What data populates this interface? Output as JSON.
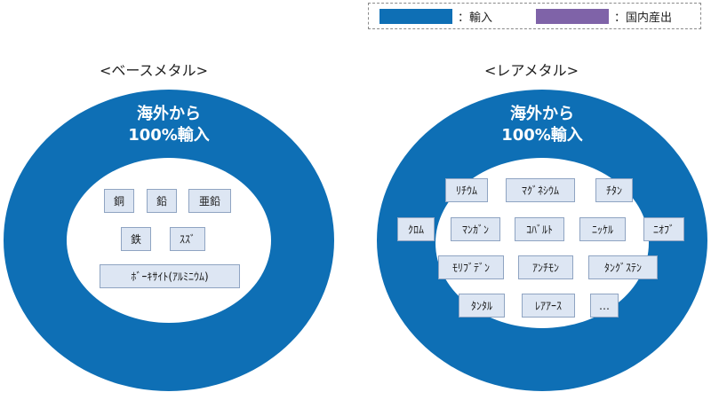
{
  "legend": {
    "import": {
      "label": "：輸入",
      "color": "#0e6fb5"
    },
    "domestic": {
      "label": "：国内産出",
      "color": "#7f63a8"
    }
  },
  "base": {
    "title": "<ベースメタル>",
    "ring_label_line1": "海外から",
    "ring_label_line2": "100%輸入",
    "items": [
      "銅",
      "鉛",
      "亜鉛",
      "鉄",
      "ｽｽﾞ",
      "ﾎﾞｰｷｻｲﾄ(ｱﾙﾐﾆｳﾑ)"
    ]
  },
  "rare": {
    "title": "<レアメタル>",
    "ring_label_line1": "海外から",
    "ring_label_line2": "100%輸入",
    "items": [
      "ﾘﾁｳﾑ",
      "ﾏｸﾞﾈｼｳﾑ",
      "ﾁﾀﾝ",
      "ｸﾛﾑ",
      "ﾏﾝｶﾞﾝ",
      "ｺﾊﾞﾙﾄ",
      "ﾆｯｹﾙ",
      "ﾆｵﾌﾞ",
      "ﾓﾘﾌﾞﾃﾞﾝ",
      "ｱﾝﾁﾓﾝ",
      "ﾀﾝｸﾞｽﾃﾝ",
      "ﾀﾝﾀﾙ",
      "ﾚｱｱｰｽ",
      "…"
    ]
  }
}
